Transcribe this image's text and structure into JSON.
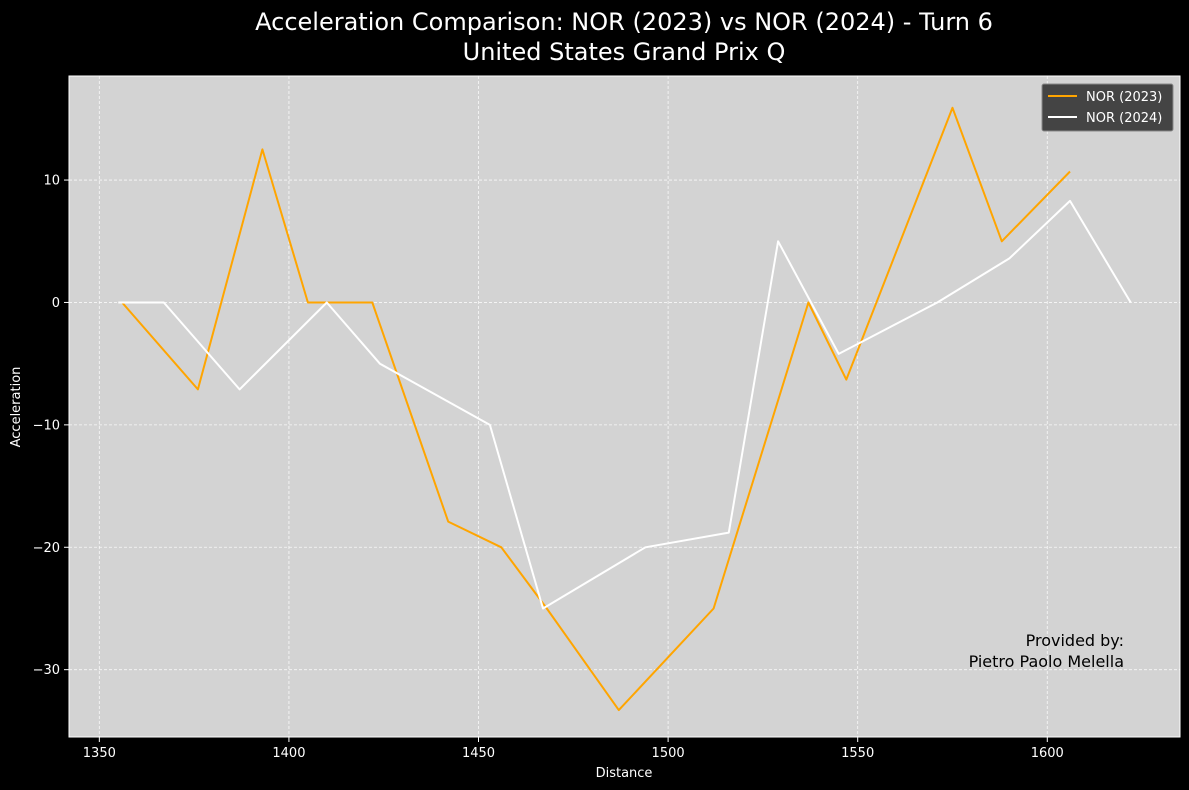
{
  "chart_data": {
    "type": "line",
    "title": "Acceleration Comparison: NOR (2023) vs NOR (2024) - Turn 6",
    "subtitle": "United States Grand Prix Q",
    "xlabel": "Distance",
    "ylabel": "Acceleration",
    "xlim": [
      1342,
      1635
    ],
    "ylim": [
      -35.5,
      18.5
    ],
    "x_ticks": [
      1350,
      1400,
      1450,
      1500,
      1550,
      1600
    ],
    "y_ticks": [
      10,
      0,
      -10,
      -20,
      -30
    ],
    "y_tick_labels": [
      "10",
      "0",
      "−10",
      "−20",
      "−30"
    ],
    "grid": true,
    "legend_position": "top-right",
    "background_color": "#d3d3d3",
    "figure_color": "#000000",
    "series": [
      {
        "name": "NOR (2023)",
        "color": "#ffa500",
        "x": [
          1356,
          1376,
          1393,
          1405,
          1422,
          1442,
          1456,
          1468,
          1487,
          1512,
          1537,
          1547,
          1575,
          1588,
          1606
        ],
        "y": [
          0,
          -7.1,
          12.5,
          0,
          0,
          -17.9,
          -20,
          -25,
          -33.3,
          -25,
          0,
          -6.3,
          15.9,
          5,
          10.7
        ]
      },
      {
        "name": "NOR (2024)",
        "color": "#ffffff",
        "x": [
          1355,
          1367,
          1387,
          1410,
          1424,
          1453,
          1467,
          1494,
          1516,
          1529,
          1545,
          1571,
          1590,
          1606,
          1622
        ],
        "y": [
          0,
          0,
          -7.1,
          0,
          -5,
          -10,
          -25,
          -20,
          -18.8,
          5,
          -4.2,
          0,
          3.6,
          8.3,
          0
        ]
      }
    ],
    "annotation": {
      "line1": "Provided by:",
      "line2": "Pietro Paolo Melella"
    }
  }
}
